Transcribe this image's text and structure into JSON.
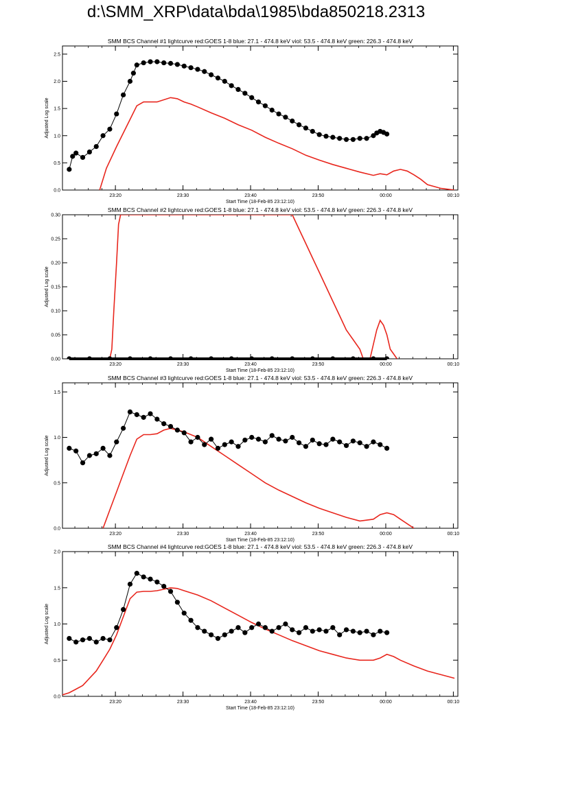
{
  "page_title": "d:\\SMM_XRP\\data\\bda\\1985\\bda850218.2313",
  "colors": {
    "goes": "#e8251c",
    "counts": "#000000",
    "axes": "#000000"
  },
  "chart_data": [
    {
      "type": "line",
      "title": "SMM BCS Channel #1 lightcurve  red:GOES 1-8  blue: 27.1 - 474.8 keV  viol: 53.5 - 474.8 keV  green: 226.3 - 474.8 keV",
      "xlabel": "Start Time (18-Feb-85 23:12:10)",
      "ylabel": "Adjusted Log scale",
      "x_ticks": [
        "23:20",
        "23:30",
        "23:40",
        "23:50",
        "00:00",
        "00:10"
      ],
      "y_ticks": [
        "0.0",
        "0.5",
        "1.0",
        "1.5",
        "2.0",
        "2.5"
      ],
      "ylim": [
        0,
        2.65
      ],
      "xlim_minutes": [
        0,
        58.5
      ],
      "series": [
        {
          "style": "line",
          "color": "#e8251c",
          "x": [
            5.5,
            6.5,
            8,
            10,
            11,
            12,
            13,
            14,
            16,
            17,
            18,
            19,
            20,
            22,
            24,
            26,
            28,
            30,
            32,
            34,
            36,
            38,
            40,
            42,
            44,
            46,
            47,
            48,
            49,
            50,
            51,
            52,
            53,
            54,
            56,
            58
          ],
          "y": [
            0.0,
            0.4,
            0.8,
            1.3,
            1.55,
            1.62,
            1.62,
            1.62,
            1.7,
            1.68,
            1.62,
            1.58,
            1.53,
            1.42,
            1.32,
            1.2,
            1.1,
            0.97,
            0.86,
            0.76,
            0.64,
            0.55,
            0.47,
            0.4,
            0.33,
            0.27,
            0.3,
            0.28,
            0.35,
            0.38,
            0.35,
            0.28,
            0.2,
            0.1,
            0.03,
            0.0
          ]
        },
        {
          "style": "points",
          "color": "#000000",
          "x": [
            1,
            1.5,
            2,
            3,
            4,
            5,
            6,
            7,
            8,
            9,
            10,
            10.5,
            11,
            12,
            13,
            14,
            15,
            16,
            17,
            18,
            19,
            20,
            21,
            22,
            23,
            24,
            25,
            26,
            27,
            28,
            29,
            30,
            31,
            32,
            33,
            34,
            35,
            36,
            37,
            38,
            39,
            40,
            41,
            42,
            43,
            44,
            45,
            46,
            46.5,
            47,
            47.5,
            48
          ],
          "y": [
            0.38,
            0.62,
            0.68,
            0.6,
            0.7,
            0.8,
            1.0,
            1.12,
            1.4,
            1.75,
            2.0,
            2.15,
            2.3,
            2.34,
            2.36,
            2.36,
            2.34,
            2.33,
            2.31,
            2.28,
            2.25,
            2.22,
            2.18,
            2.12,
            2.06,
            2.0,
            1.92,
            1.85,
            1.78,
            1.7,
            1.62,
            1.55,
            1.47,
            1.4,
            1.34,
            1.27,
            1.2,
            1.14,
            1.08,
            1.02,
            0.99,
            0.97,
            0.95,
            0.93,
            0.93,
            0.95,
            0.95,
            1.0,
            1.05,
            1.08,
            1.06,
            1.03
          ]
        }
      ]
    },
    {
      "type": "line",
      "title": "SMM BCS Channel #2 lightcurve  red:GOES 1-8  blue: 27.1 - 474.8 keV  viol: 53.5 - 474.8 keV  green: 226.3 - 474.8 keV",
      "xlabel": "Start Time (18-Feb-85 23:12:10)",
      "ylabel": "Adjusted Log scale",
      "x_ticks": [
        "23:20",
        "23:30",
        "23:40",
        "23:50",
        "00:00",
        "00:10"
      ],
      "y_ticks": [
        "0.00",
        "0.05",
        "0.10",
        "0.15",
        "0.20",
        "0.25",
        "0.30"
      ],
      "ylim": [
        0,
        0.3
      ],
      "xlim_minutes": [
        0,
        58.5
      ],
      "series": [
        {
          "style": "line",
          "color": "#e8251c",
          "x": [
            7,
            7.3,
            7.6,
            8,
            8.3,
            8.6,
            34,
            35,
            36,
            37,
            38,
            39,
            40,
            41,
            42,
            43,
            44,
            44.5,
            45,
            45.5,
            46,
            46.5,
            47,
            47.5,
            48,
            48.5,
            49,
            49.5
          ],
          "y": [
            0.0,
            0.02,
            0.1,
            0.2,
            0.28,
            0.3,
            0.3,
            0.27,
            0.24,
            0.21,
            0.18,
            0.15,
            0.12,
            0.09,
            0.06,
            0.04,
            0.02,
            0.0,
            0.0,
            0.0,
            0.03,
            0.06,
            0.08,
            0.07,
            0.05,
            0.02,
            0.01,
            0.0
          ]
        },
        {
          "style": "points",
          "color": "#000000",
          "x": [
            1,
            4,
            7,
            10,
            13,
            16,
            19,
            22,
            25,
            28,
            31,
            34,
            37,
            40,
            43,
            46,
            48
          ],
          "y": [
            0,
            0,
            0,
            0,
            0,
            0,
            0,
            0,
            0,
            0,
            0,
            0,
            0,
            0,
            0,
            0,
            0
          ]
        }
      ]
    },
    {
      "type": "line",
      "title": "SMM BCS Channel #3 lightcurve  red:GOES 1-8  blue: 27.1 - 474.8 keV  viol: 53.5 - 474.8 keV  green: 226.3 - 474.8 keV",
      "xlabel": "Start Time (18-Feb-85 23:12:10)",
      "ylabel": "Adjusted Log scale",
      "x_ticks": [
        "23:20",
        "23:30",
        "23:40",
        "23:50",
        "00:00",
        "00:10"
      ],
      "y_ticks": [
        "0.0",
        "0.5",
        "1.0",
        "1.5"
      ],
      "ylim": [
        0,
        1.6
      ],
      "xlim_minutes": [
        0,
        58.5
      ],
      "series": [
        {
          "style": "line",
          "color": "#e8251c",
          "x": [
            6,
            7,
            8,
            9,
            10,
            11,
            12,
            13,
            14,
            15,
            16,
            17,
            18,
            20,
            22,
            24,
            26,
            28,
            30,
            32,
            34,
            36,
            38,
            40,
            42,
            44,
            46,
            47,
            48,
            49,
            50,
            51,
            52
          ],
          "y": [
            0.0,
            0.2,
            0.4,
            0.6,
            0.8,
            0.98,
            1.03,
            1.03,
            1.04,
            1.08,
            1.1,
            1.08,
            1.06,
            1.0,
            0.9,
            0.8,
            0.7,
            0.6,
            0.5,
            0.42,
            0.35,
            0.28,
            0.22,
            0.17,
            0.12,
            0.08,
            0.1,
            0.15,
            0.17,
            0.15,
            0.1,
            0.05,
            0.0
          ]
        },
        {
          "style": "points",
          "color": "#000000",
          "x": [
            1,
            2,
            3,
            4,
            5,
            6,
            7,
            8,
            9,
            10,
            11,
            12,
            13,
            14,
            15,
            16,
            17,
            18,
            19,
            20,
            21,
            22,
            23,
            24,
            25,
            26,
            27,
            28,
            29,
            30,
            31,
            32,
            33,
            34,
            35,
            36,
            37,
            38,
            39,
            40,
            41,
            42,
            43,
            44,
            45,
            46,
            47,
            48
          ],
          "y": [
            0.88,
            0.85,
            0.72,
            0.8,
            0.82,
            0.88,
            0.8,
            0.95,
            1.1,
            1.28,
            1.25,
            1.22,
            1.26,
            1.2,
            1.15,
            1.12,
            1.08,
            1.05,
            0.95,
            1.0,
            0.92,
            0.98,
            0.88,
            0.92,
            0.95,
            0.9,
            0.97,
            1.0,
            0.98,
            0.95,
            1.02,
            0.98,
            0.96,
            1.0,
            0.94,
            0.9,
            0.97,
            0.93,
            0.92,
            0.98,
            0.95,
            0.91,
            0.96,
            0.94,
            0.9,
            0.95,
            0.92,
            0.88
          ]
        }
      ]
    },
    {
      "type": "line",
      "title": "SMM BCS Channel #4 lightcurve  red:GOES 1-8  blue: 27.1 - 474.8 keV  viol: 53.5 - 474.8 keV  green: 226.3 - 474.8 keV",
      "xlabel": "Start Time (18-Feb-85 23:12:10)",
      "ylabel": "Adjusted Log scale",
      "x_ticks": [
        "23:20",
        "23:30",
        "23:40",
        "23:50",
        "00:00",
        "00:10"
      ],
      "y_ticks": [
        "0.0",
        "0.5",
        "1.0",
        "1.5",
        "2.0"
      ],
      "ylim": [
        0,
        2.0
      ],
      "xlim_minutes": [
        0,
        58.5
      ],
      "series": [
        {
          "style": "line",
          "color": "#e8251c",
          "x": [
            0,
            1,
            2,
            3,
            4,
            5,
            6,
            7,
            8,
            9,
            10,
            11,
            12,
            13,
            14,
            15,
            16,
            17,
            18,
            20,
            22,
            24,
            26,
            28,
            30,
            32,
            34,
            36,
            38,
            40,
            42,
            44,
            46,
            47,
            48,
            49,
            50,
            52,
            54,
            56,
            58
          ],
          "y": [
            0.02,
            0.05,
            0.1,
            0.15,
            0.25,
            0.35,
            0.5,
            0.65,
            0.85,
            1.1,
            1.35,
            1.44,
            1.45,
            1.45,
            1.46,
            1.48,
            1.5,
            1.49,
            1.46,
            1.4,
            1.32,
            1.22,
            1.12,
            1.02,
            0.93,
            0.85,
            0.77,
            0.7,
            0.63,
            0.58,
            0.53,
            0.5,
            0.5,
            0.53,
            0.58,
            0.55,
            0.5,
            0.42,
            0.35,
            0.3,
            0.25
          ]
        },
        {
          "style": "points",
          "color": "#000000",
          "x": [
            1,
            2,
            3,
            4,
            5,
            6,
            7,
            8,
            9,
            10,
            11,
            12,
            13,
            14,
            15,
            16,
            17,
            18,
            19,
            20,
            21,
            22,
            23,
            24,
            25,
            26,
            27,
            28,
            29,
            30,
            31,
            32,
            33,
            34,
            35,
            36,
            37,
            38,
            39,
            40,
            41,
            42,
            43,
            44,
            45,
            46,
            47,
            48
          ],
          "y": [
            0.8,
            0.75,
            0.78,
            0.8,
            0.75,
            0.8,
            0.78,
            0.95,
            1.2,
            1.55,
            1.7,
            1.65,
            1.62,
            1.58,
            1.52,
            1.45,
            1.3,
            1.15,
            1.05,
            0.95,
            0.9,
            0.85,
            0.8,
            0.85,
            0.9,
            0.95,
            0.88,
            0.95,
            1.0,
            0.95,
            0.9,
            0.95,
            1.0,
            0.92,
            0.88,
            0.95,
            0.9,
            0.92,
            0.9,
            0.95,
            0.85,
            0.92,
            0.9,
            0.88,
            0.9,
            0.85,
            0.9,
            0.88
          ]
        }
      ]
    }
  ]
}
